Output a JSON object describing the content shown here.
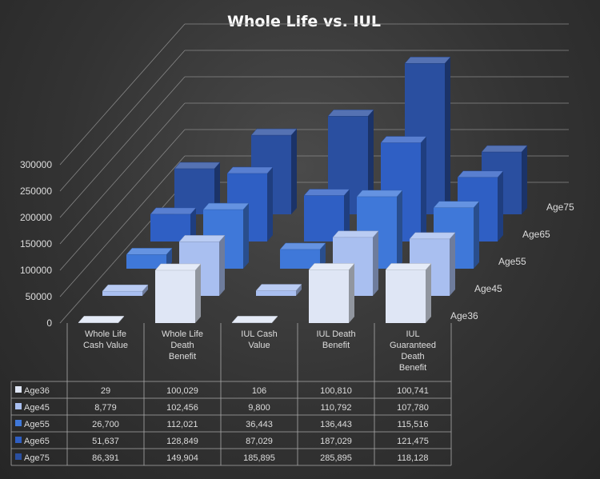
{
  "chart_data": {
    "type": "bar",
    "title": "Whole Life vs. IUL",
    "categories": [
      "Whole Life Cash Value",
      "Whole Life Death Benefit",
      "IUL Cash Value",
      "IUL Death Benefit",
      "IUL Guaranteed Death Benefit"
    ],
    "category_lines": [
      [
        "Whole Life",
        "Cash Value"
      ],
      [
        "Whole Life",
        "Death",
        "Benefit"
      ],
      [
        "IUL Cash",
        "Value"
      ],
      [
        "IUL Death",
        "Benefit"
      ],
      [
        "IUL",
        "Guaranteed",
        "Death",
        "Benefit"
      ]
    ],
    "series": [
      {
        "name": "Age36",
        "values": [
          29,
          100029,
          106,
          100810,
          100741
        ],
        "display": [
          "29",
          "100,029",
          "106",
          "100,810",
          "100,741"
        ],
        "color": "#dfe6f5"
      },
      {
        "name": "Age45",
        "values": [
          8779,
          102456,
          9800,
          110792,
          107780
        ],
        "display": [
          "8,779",
          "102,456",
          "9,800",
          "110,792",
          "107,780"
        ],
        "color": "#a9bff0"
      },
      {
        "name": "Age55",
        "values": [
          26700,
          112021,
          36443,
          136443,
          115516
        ],
        "display": [
          "26,700",
          "112,021",
          "36,443",
          "136,443",
          "115,516"
        ],
        "color": "#3f78d9"
      },
      {
        "name": "Age65",
        "values": [
          51637,
          128849,
          87029,
          187029,
          121475
        ],
        "display": [
          "51,637",
          "128,849",
          "87,029",
          "187,029",
          "121,475"
        ],
        "color": "#2f5fc4"
      },
      {
        "name": "Age75",
        "values": [
          86391,
          149904,
          185895,
          285895,
          118128
        ],
        "display": [
          "86,391",
          "149,904",
          "185,895",
          "285,895",
          "118,128"
        ],
        "color": "#2a4fa0"
      }
    ],
    "y_ticks": [
      "0",
      "50000",
      "100000",
      "150000",
      "200000",
      "250000",
      "300000"
    ],
    "ylim": [
      0,
      300000
    ],
    "legend": "data-table-below"
  }
}
